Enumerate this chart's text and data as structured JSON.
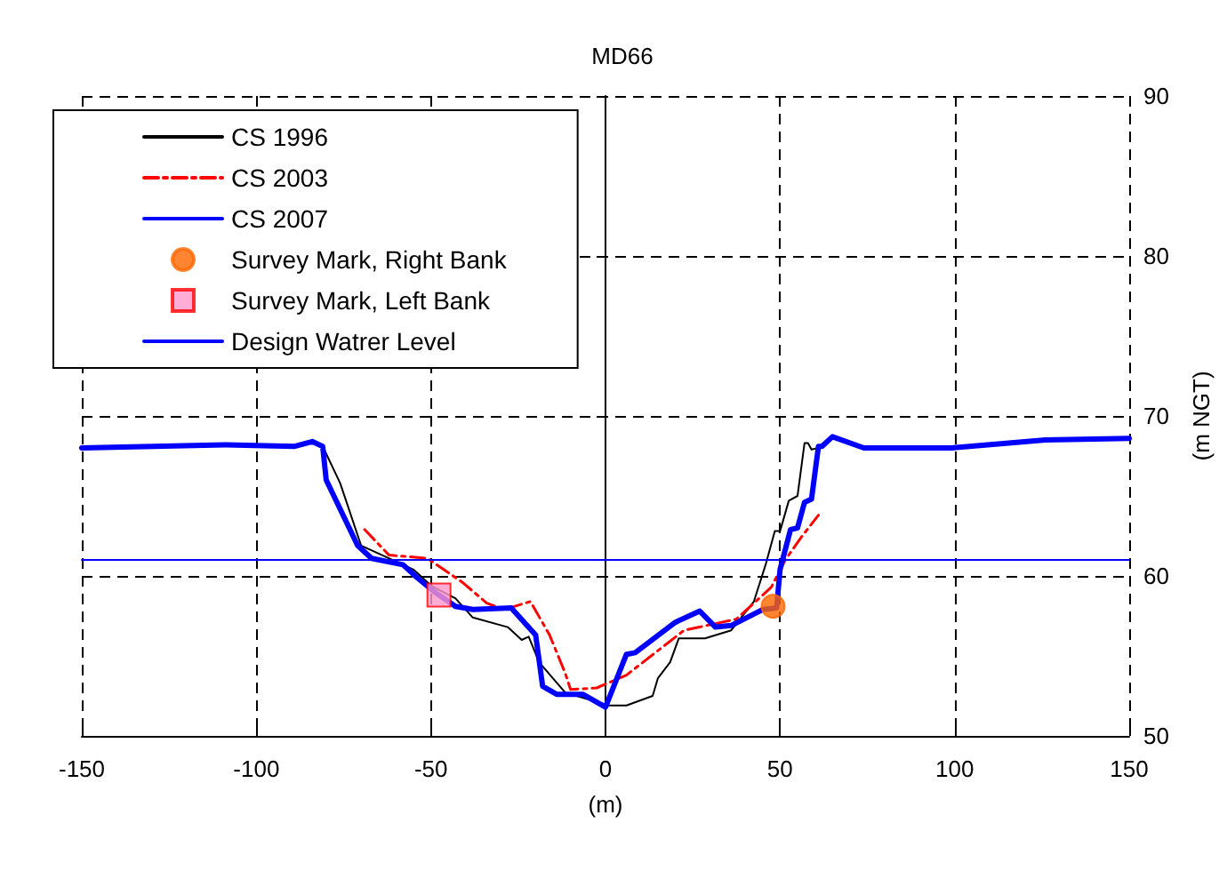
{
  "chart_data": {
    "type": "line",
    "title": "MD66",
    "xlabel": "(m)",
    "ylabel": "(m NGT)",
    "xlim": [
      -150,
      150
    ],
    "xticks": [
      -150,
      -100,
      -50,
      0,
      50,
      100,
      150
    ],
    "ylim": [
      50,
      90
    ],
    "yticks": [
      50,
      60,
      70,
      80,
      90
    ],
    "grid": true,
    "legend": "top left",
    "series": [
      {
        "name": "CS 1996",
        "color": "#000000",
        "line_style": "solid",
        "x": [
          -81,
          -76,
          -70,
          -63,
          -55,
          -50,
          -43,
          -38,
          -28,
          -24,
          -22,
          -19,
          -11.5,
          1,
          6,
          13.5,
          15,
          18.5,
          21,
          28.5,
          36,
          42.5,
          46,
          48.5,
          50,
          52.5,
          55,
          57,
          58,
          59,
          61
        ],
        "values": [
          68.1,
          65.8,
          61.9,
          61.2,
          60.4,
          59.4,
          58.6,
          57.4,
          56.8,
          56.0,
          56.2,
          54.6,
          52.7,
          51.9,
          51.9,
          52.5,
          53.6,
          54.6,
          56.1,
          56.1,
          56.6,
          58.4,
          60.8,
          62.8,
          62.8,
          64.7,
          65.0,
          68.3,
          68.3,
          67.9,
          68.0
        ]
      },
      {
        "name": "CS 2003",
        "color": "#ff0000",
        "line_style": "dashed",
        "x": [
          -69,
          -62,
          -51,
          -41,
          -34,
          -29,
          -21.5,
          -16,
          -11.5,
          -10,
          -2.5,
          6,
          22.5,
          37.5,
          47.5,
          51.5,
          56,
          61
        ],
        "values": [
          62.9,
          61.3,
          61.1,
          59.6,
          58.3,
          57.9,
          58.4,
          56.3,
          53.9,
          52.9,
          53.0,
          53.8,
          56.6,
          57.3,
          59.3,
          61.0,
          62.4,
          63.8
        ]
      },
      {
        "name": "CS 2007",
        "color": "#0000ff",
        "line_style": "solid",
        "x": [
          -150,
          -109,
          -89,
          -84,
          -81,
          -80,
          -71,
          -67,
          -58,
          -54,
          -49,
          -43,
          -38,
          -27,
          -20,
          -18,
          -14,
          -6.5,
          0,
          6,
          8.5,
          20,
          27,
          31.5,
          36,
          45,
          49,
          50,
          53,
          55,
          57,
          59,
          61,
          62,
          65,
          74,
          99,
          126,
          150
        ],
        "values": [
          68.0,
          68.2,
          68.1,
          68.4,
          68.1,
          66.0,
          61.9,
          61.1,
          60.7,
          59.9,
          59.0,
          58.1,
          57.9,
          58.0,
          56.3,
          53.1,
          52.6,
          52.6,
          51.8,
          55.1,
          55.2,
          57.1,
          57.8,
          56.8,
          56.9,
          57.9,
          58.0,
          60.4,
          62.9,
          63.0,
          64.6,
          64.8,
          68.1,
          68.1,
          68.7,
          68.0,
          68.0,
          68.5,
          68.6
        ]
      },
      {
        "name": "Survey Mark, Right Bank",
        "type": "scatter",
        "marker": "circle",
        "color": "#ff6600",
        "x": [
          48
        ],
        "values": [
          58.1
        ]
      },
      {
        "name": "Survey Mark, Left Bank",
        "type": "scatter",
        "marker": "square",
        "color": "#ff99cc",
        "x": [
          -47.7
        ],
        "values": [
          58.8
        ]
      },
      {
        "name": "Design Watrer Level",
        "color": "#0000ff",
        "line_style": "solid",
        "x": [
          -150,
          150
        ],
        "values": [
          61,
          61
        ]
      }
    ]
  }
}
